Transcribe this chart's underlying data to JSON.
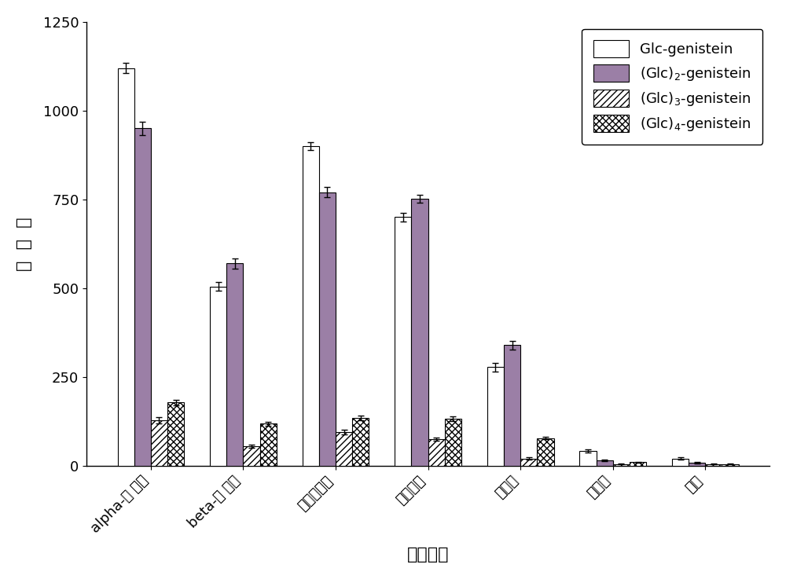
{
  "categories": [
    "alpha-环 糖精",
    "beta-环 糖精",
    "可溶性淠粉",
    "麦舒糖精",
    "麦芽糖",
    "葡萄糖",
    "蔗糖"
  ],
  "series": [
    {
      "name": "Glc-genistein",
      "values": [
        1120,
        505,
        900,
        700,
        278,
        42,
        20
      ],
      "errors": [
        15,
        12,
        12,
        12,
        12,
        5,
        3
      ],
      "facecolor": "white",
      "edgecolor": "black",
      "hatch": null
    },
    {
      "name": "(Glc)$_2$-genistein",
      "values": [
        950,
        570,
        770,
        752,
        340,
        15,
        8
      ],
      "errors": [
        18,
        14,
        14,
        12,
        12,
        3,
        2
      ],
      "facecolor": "#9b7fa6",
      "edgecolor": "black",
      "hatch": null
    },
    {
      "name": "(Glc)$_3$-genistein",
      "values": [
        128,
        55,
        95,
        75,
        20,
        5,
        5
      ],
      "errors": [
        8,
        5,
        6,
        5,
        3,
        1,
        1
      ],
      "facecolor": "white",
      "edgecolor": "black",
      "hatch": "////"
    },
    {
      "name": "(Glc)$_4$-genistein",
      "values": [
        178,
        118,
        135,
        132,
        78,
        10,
        5
      ],
      "errors": [
        8,
        6,
        6,
        6,
        4,
        1,
        1
      ],
      "facecolor": "white",
      "edgecolor": "black",
      "hatch": "xxxx"
    }
  ],
  "xlabel": "糖基供体",
  "ylabel": "峰  面  积",
  "ylim": [
    0,
    1250
  ],
  "yticks": [
    0,
    250,
    500,
    750,
    1000,
    1250
  ],
  "bar_width": 0.18,
  "label_fontsize": 16,
  "tick_fontsize": 13,
  "legend_fontsize": 13
}
